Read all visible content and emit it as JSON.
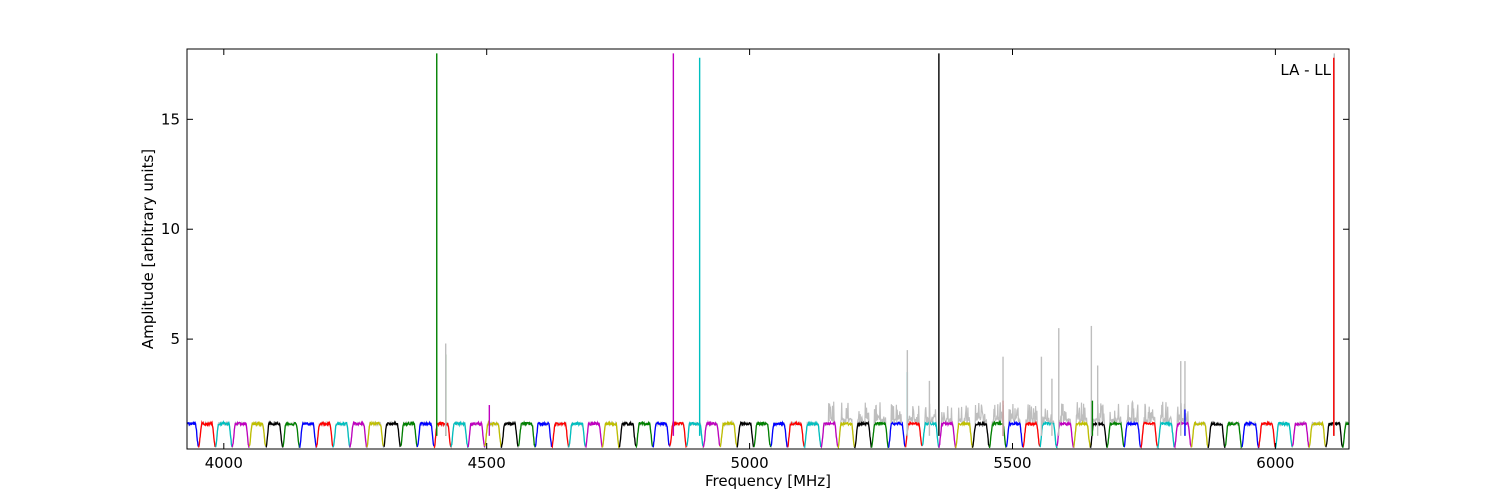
{
  "chart_data": {
    "type": "line",
    "title": "",
    "xlabel": "Frequency [MHz]",
    "ylabel": "Amplitude [arbitrary units]",
    "annotation": "LA - LL",
    "xlim": [
      3930,
      6140
    ],
    "ylim": [
      0,
      18.2
    ],
    "xticks": [
      4000,
      4500,
      5000,
      5500,
      6000
    ],
    "yticks": [
      5,
      10,
      15
    ],
    "grid": false,
    "legend": "none",
    "background_color": "#bebebe",
    "channel_colors": [
      "#0000ff",
      "#ff0000",
      "#00bfbf",
      "#bf00bf",
      "#bfbf00",
      "#000000",
      "#008000"
    ],
    "channel_width_mhz": 32,
    "channel_shape": {
      "edge_value": 0.1,
      "edge_fraction": 0.2,
      "flat_value": 1.15,
      "ripple": 0.06
    },
    "spikes": [
      {
        "x": 4405,
        "y": 18.0,
        "color": "#008000"
      },
      {
        "x": 4422,
        "y": 4.3,
        "color": "#008000"
      },
      {
        "x": 4422,
        "y": 4.8,
        "color": "#bebebe"
      },
      {
        "x": 4505,
        "y": 2.0,
        "color": "#bf00bf"
      },
      {
        "x": 4855,
        "y": 18.0,
        "color": "#bf00bf"
      },
      {
        "x": 4905,
        "y": 17.8,
        "color": "#00bfbf"
      },
      {
        "x": 5300,
        "y": 3.5,
        "color": "#00bfbf"
      },
      {
        "x": 5300,
        "y": 4.5,
        "color": "#bebebe"
      },
      {
        "x": 5360,
        "y": 18.0,
        "color": "#000000"
      },
      {
        "x": 5342,
        "y": 3.1,
        "color": "#bebebe"
      },
      {
        "x": 5482,
        "y": 2.2,
        "color": "#ff0000"
      },
      {
        "x": 5482,
        "y": 4.2,
        "color": "#bebebe"
      },
      {
        "x": 5555,
        "y": 4.2,
        "color": "#bebebe"
      },
      {
        "x": 5575,
        "y": 3.2,
        "color": "#bebebe"
      },
      {
        "x": 5588,
        "y": 5.5,
        "color": "#bebebe"
      },
      {
        "x": 5650,
        "y": 5.6,
        "color": "#bebebe"
      },
      {
        "x": 5652,
        "y": 2.2,
        "color": "#008000"
      },
      {
        "x": 5662,
        "y": 3.8,
        "color": "#bebebe"
      },
      {
        "x": 5820,
        "y": 4.0,
        "color": "#bebebe"
      },
      {
        "x": 5828,
        "y": 4.0,
        "color": "#bebebe"
      },
      {
        "x": 5828,
        "y": 1.8,
        "color": "#0000ff"
      },
      {
        "x": 6112,
        "y": 18.0,
        "color": "#bebebe"
      },
      {
        "x": 6111,
        "y": 17.8,
        "color": "#ff0000"
      }
    ],
    "noisy_band": {
      "from": 5150,
      "to": 5840,
      "max_extra": 1.0
    }
  }
}
